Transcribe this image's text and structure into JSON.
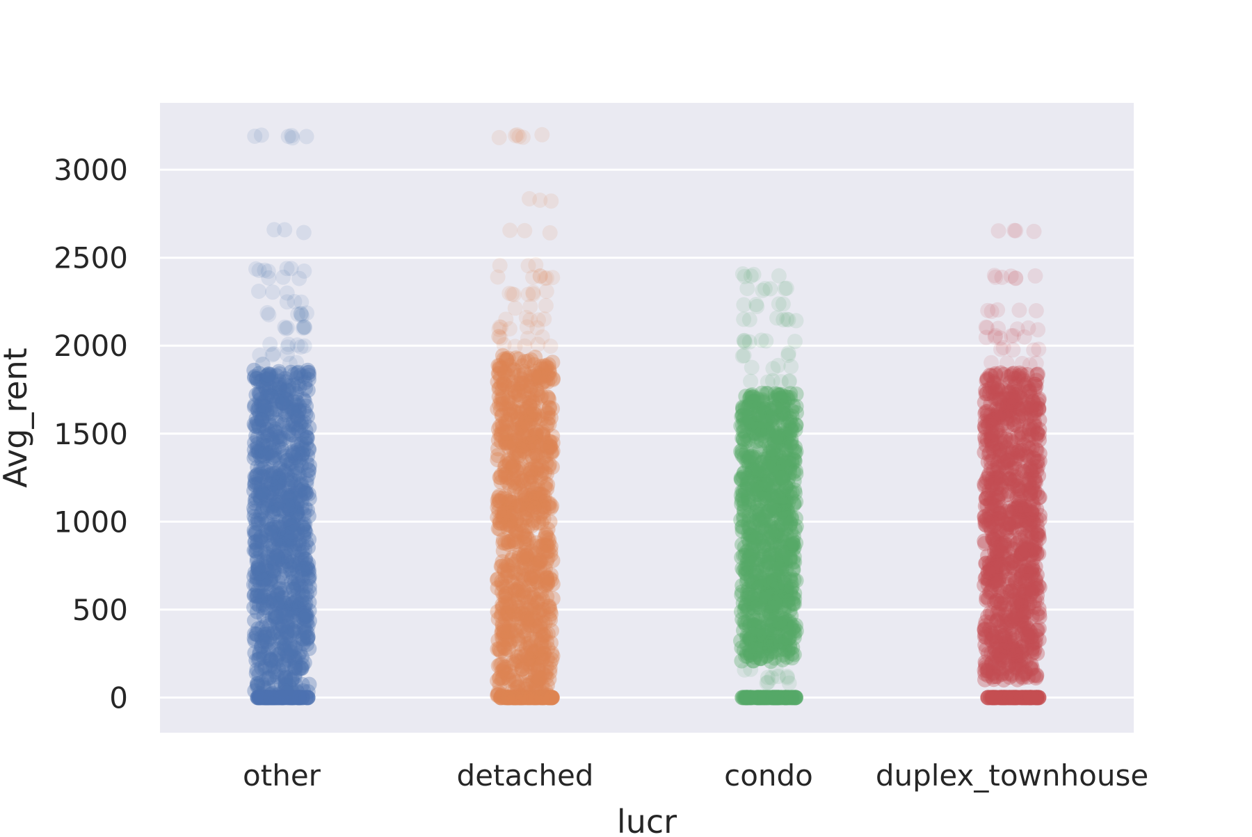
{
  "chart_data": {
    "type": "scatter",
    "subtype": "strip",
    "xlabel": "lucr",
    "ylabel": "Avg_rent",
    "categories": [
      "other",
      "detached",
      "condo",
      "duplex_townhouse"
    ],
    "yticks": [
      0,
      500,
      1000,
      1500,
      2000,
      2500,
      3000
    ],
    "ylim": [
      -200,
      3380
    ],
    "grid": true,
    "background": "#eaeaf2",
    "series": [
      {
        "category": "other",
        "color": "#4c72b0",
        "dense_range": [
          0,
          1860
        ],
        "zero_cluster": 0,
        "sparse_values": [
          1900,
          1950,
          2000,
          2100,
          2180,
          2250,
          2300,
          2390,
          2430,
          2650,
          3190
        ]
      },
      {
        "category": "detached",
        "color": "#dd8452",
        "dense_range": [
          0,
          1950
        ],
        "zero_cluster": 0,
        "sparse_values": [
          2000,
          2050,
          2100,
          2150,
          2220,
          2300,
          2390,
          2450,
          2650,
          2830,
          3190
        ]
      },
      {
        "category": "condo",
        "color": "#55a868",
        "dense_range": [
          200,
          1730
        ],
        "zero_cluster": 0,
        "sparse_values": [
          80,
          120,
          160,
          1800,
          1880,
          1950,
          2030,
          2150,
          2230,
          2320,
          2400
        ]
      },
      {
        "category": "duplex_townhouse",
        "color": "#c44e52",
        "dense_range": [
          100,
          1850
        ],
        "zero_cluster": 0,
        "sparse_values": [
          1900,
          1980,
          2050,
          2100,
          2200,
          2390,
          2650
        ]
      }
    ]
  }
}
